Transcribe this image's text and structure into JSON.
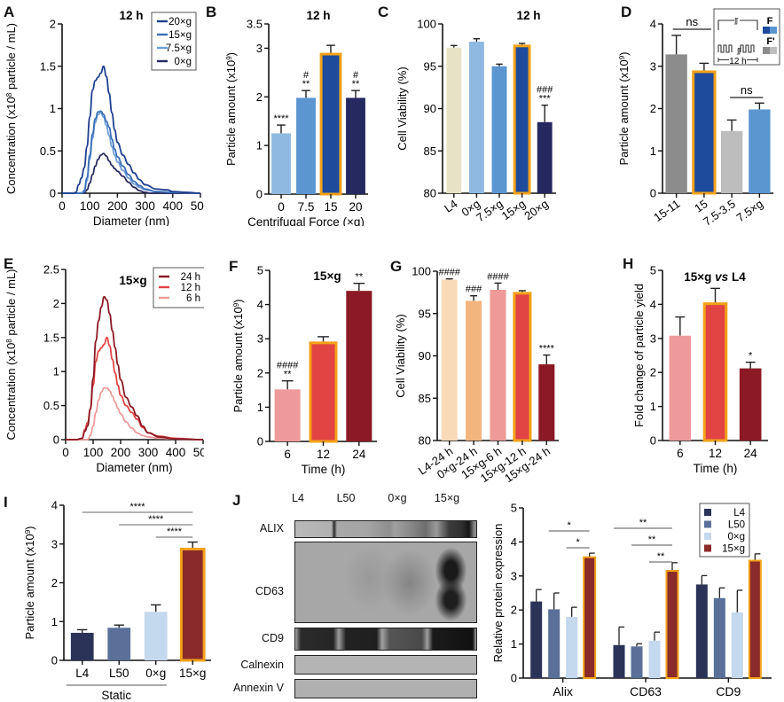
{
  "figure": {
    "panels": [
      "A",
      "B",
      "C",
      "D",
      "E",
      "F",
      "G",
      "H",
      "I",
      "J"
    ]
  },
  "colors": {
    "blue_20": "#1f3f8f",
    "blue_15": "#3d6fb8",
    "blue_75": "#6f9fd6",
    "blue_0": "#a9c8e8",
    "bar_blue_0": "#8fb9e0",
    "bar_blue_75": "#5b96d0",
    "bar_blue_15": "#1e4b9c",
    "bar_blue_20": "#26295f",
    "beige": "#e6e2c6",
    "gray_dark": "#8c8c8c",
    "gray_light": "#bdbdbd",
    "red_24": "#8b1a24",
    "red_12": "#e24444",
    "red_6": "#ef9a9a",
    "peach_light": "#f8dab8",
    "peach": "#f3b57e",
    "pink": "#ee9a98",
    "navy": "#2b3458",
    "slate": "#5a7098",
    "pale_blue": "#c4d8ee",
    "maroon": "#8a2a2a",
    "highlight_outline": "#f2a218"
  },
  "chart_data": [
    {
      "id": "A",
      "type": "line",
      "title": "12 h",
      "xlabel": "Diameter (nm)",
      "ylabel": "Concentration (x10^8 particle / mL)",
      "xlim": [
        0,
        500
      ],
      "ylim": [
        0,
        2
      ],
      "xticks": [
        "0",
        "100",
        "200",
        "300",
        "400",
        "500"
      ],
      "yticks": [
        "0",
        "0.5",
        "1",
        "1.5",
        "2"
      ],
      "legend_position": "top-right",
      "series": [
        {
          "name": "20×g",
          "color_key": "blue_20",
          "x": [
            0,
            40,
            50,
            60,
            70,
            80,
            90,
            100,
            110,
            120,
            130,
            140,
            150,
            160,
            170,
            180,
            190,
            200,
            220,
            240,
            260,
            280,
            300,
            340,
            380,
            400,
            450,
            500
          ],
          "y": [
            0,
            0,
            0.01,
            0.1,
            0.18,
            0.3,
            0.55,
            0.9,
            1.22,
            1.33,
            1.37,
            1.42,
            1.5,
            1.38,
            1.18,
            0.95,
            0.75,
            0.6,
            0.45,
            0.34,
            0.24,
            0.16,
            0.1,
            0.05,
            0.04,
            0.02,
            0.01,
            0
          ]
        },
        {
          "name": "15×g",
          "color_key": "blue_15",
          "x": [
            0,
            70,
            80,
            90,
            100,
            110,
            120,
            130,
            140,
            150,
            160,
            170,
            180,
            190,
            200,
            220,
            240,
            260,
            280,
            300,
            340,
            400,
            500
          ],
          "y": [
            0,
            0,
            0.03,
            0.18,
            0.45,
            0.7,
            0.88,
            0.96,
            0.97,
            0.93,
            0.85,
            0.78,
            0.64,
            0.52,
            0.43,
            0.32,
            0.22,
            0.14,
            0.09,
            0.05,
            0.02,
            0.01,
            0
          ]
        },
        {
          "name": "7.5×g",
          "color_key": "blue_75",
          "x": [
            0,
            70,
            80,
            90,
            100,
            110,
            120,
            130,
            140,
            150,
            160,
            170,
            180,
            190,
            200,
            220,
            240,
            260,
            280,
            300,
            340,
            400,
            500
          ],
          "y": [
            0,
            0,
            0.02,
            0.15,
            0.4,
            0.65,
            0.84,
            0.93,
            0.95,
            0.9,
            0.8,
            0.68,
            0.55,
            0.45,
            0.37,
            0.27,
            0.18,
            0.11,
            0.07,
            0.04,
            0.02,
            0.01,
            0
          ]
        },
        {
          "name": "0×g",
          "color_key": "bar_blue_20",
          "x": [
            0,
            80,
            90,
            100,
            110,
            120,
            130,
            140,
            150,
            160,
            170,
            180,
            190,
            200,
            220,
            240,
            260,
            280,
            300,
            320,
            400,
            500
          ],
          "y": [
            0,
            0,
            0.04,
            0.12,
            0.22,
            0.32,
            0.4,
            0.45,
            0.47,
            0.44,
            0.38,
            0.33,
            0.29,
            0.26,
            0.2,
            0.13,
            0.07,
            0.03,
            0.01,
            0,
            0,
            0
          ]
        }
      ]
    },
    {
      "id": "B",
      "type": "bar",
      "title": "12 h",
      "xlabel": "Centrifugal Force (×g)",
      "ylabel": "Particle amount (x10^9)",
      "ylim": [
        0,
        3.5
      ],
      "yticks": [
        "0",
        "1",
        "2",
        "3",
        "3.5"
      ],
      "categories": [
        "0",
        "7.5",
        "15",
        "20"
      ],
      "values": [
        1.25,
        1.98,
        2.88,
        1.98
      ],
      "errors": [
        0.17,
        0.15,
        0.18,
        0.15
      ],
      "color_keys": [
        "bar_blue_0",
        "bar_blue_75",
        "bar_blue_15",
        "bar_blue_20"
      ],
      "highlighted": [
        false,
        false,
        true,
        false
      ],
      "annotations": [
        "****",
        "#\n**",
        "",
        "#\n**"
      ]
    },
    {
      "id": "C",
      "type": "bar",
      "title": "12 h",
      "xlabel": "",
      "ylabel": "Cell Viability (%)",
      "ylim": [
        80,
        100
      ],
      "yticks": [
        "80",
        "85",
        "90",
        "95",
        "100"
      ],
      "categories": [
        "L4",
        "0×g",
        "7.5×g",
        "15×g",
        "20×g"
      ],
      "values": [
        97.2,
        97.9,
        95.0,
        97.4,
        88.4
      ],
      "errors": [
        0.25,
        0.35,
        0.25,
        0.3,
        2.0
      ],
      "color_keys": [
        "beige",
        "bar_blue_0",
        "bar_blue_75",
        "bar_blue_15",
        "bar_blue_20"
      ],
      "highlighted": [
        false,
        false,
        false,
        true,
        false
      ],
      "annotations": [
        "",
        "",
        "",
        "",
        "###\n***"
      ]
    },
    {
      "id": "D",
      "type": "bar",
      "title": "",
      "xlabel": "",
      "ylabel": "Particle amount (x10^9)",
      "ylim": [
        0,
        4
      ],
      "yticks": [
        "0",
        "1",
        "2",
        "3",
        "4"
      ],
      "categories": [
        "15-11",
        "15",
        "7.5-3.5",
        "7.5×g"
      ],
      "values": [
        3.28,
        2.87,
        1.47,
        1.98
      ],
      "errors": [
        0.45,
        0.2,
        0.26,
        0.15
      ],
      "color_keys": [
        "gray_dark",
        "bar_blue_15",
        "gray_light",
        "bar_blue_75"
      ],
      "highlighted": [
        false,
        true,
        false,
        false
      ],
      "brackets": [
        {
          "from": 0,
          "to": 1,
          "label": "ns"
        },
        {
          "from": 2,
          "to": 3,
          "label": "ns"
        }
      ],
      "inset": {
        "label_f": "F",
        "label_f_prime": "F'",
        "duration": "12 h"
      }
    },
    {
      "id": "E",
      "type": "line",
      "title": "15×g",
      "xlabel": "Diameter (nm)",
      "ylabel": "Concentration (x10^8 particle / mL)",
      "xlim": [
        0,
        500
      ],
      "ylim": [
        0,
        2.5
      ],
      "xticks": [
        "0",
        "100",
        "200",
        "300",
        "400",
        "500"
      ],
      "yticks": [
        "0",
        "0.5",
        "1",
        "1.5",
        "2",
        "2.5"
      ],
      "legend_position": "top-right",
      "series": [
        {
          "name": "24 h",
          "color_key": "red_24",
          "x": [
            0,
            40,
            60,
            70,
            80,
            90,
            100,
            110,
            120,
            130,
            140,
            150,
            160,
            170,
            180,
            190,
            200,
            220,
            240,
            260,
            280,
            300,
            340,
            400,
            500
          ],
          "y": [
            0,
            0,
            0.02,
            0.12,
            0.2,
            0.45,
            0.9,
            1.45,
            1.75,
            1.95,
            2.1,
            2.05,
            1.85,
            1.6,
            1.35,
            1.1,
            0.88,
            0.62,
            0.48,
            0.35,
            0.2,
            0.1,
            0.04,
            0.01,
            0
          ]
        },
        {
          "name": "12 h",
          "color_key": "red_12",
          "x": [
            0,
            40,
            60,
            70,
            80,
            90,
            100,
            110,
            120,
            130,
            140,
            150,
            160,
            170,
            180,
            190,
            200,
            220,
            240,
            260,
            280,
            300,
            340,
            400,
            500
          ],
          "y": [
            0,
            0,
            0.02,
            0.15,
            0.25,
            0.45,
            0.8,
            1.15,
            1.3,
            1.35,
            1.4,
            1.5,
            1.38,
            1.18,
            0.98,
            0.8,
            0.65,
            0.5,
            0.4,
            0.3,
            0.18,
            0.1,
            0.05,
            0.02,
            0
          ]
        },
        {
          "name": "6 h",
          "color_key": "red_6",
          "x": [
            0,
            80,
            90,
            100,
            110,
            120,
            130,
            140,
            150,
            160,
            170,
            180,
            190,
            200,
            220,
            240,
            260,
            280,
            300,
            340,
            400,
            500
          ],
          "y": [
            0,
            0,
            0.06,
            0.2,
            0.4,
            0.58,
            0.7,
            0.76,
            0.76,
            0.72,
            0.64,
            0.55,
            0.46,
            0.38,
            0.26,
            0.17,
            0.1,
            0.06,
            0.04,
            0.02,
            0.01,
            0
          ]
        }
      ]
    },
    {
      "id": "F",
      "type": "bar",
      "title": "15×g",
      "xlabel": "Time (h)",
      "ylabel": "Particle amount (x10^9)",
      "ylim": [
        0,
        5
      ],
      "yticks": [
        "0",
        "1",
        "2",
        "3",
        "4",
        "5"
      ],
      "categories": [
        "6",
        "12",
        "24"
      ],
      "values": [
        1.52,
        2.88,
        4.4
      ],
      "errors": [
        0.25,
        0.18,
        0.22
      ],
      "color_keys": [
        "red_6",
        "red_12",
        "red_24"
      ],
      "highlighted": [
        false,
        true,
        false
      ],
      "annotations": [
        "####\n**",
        "",
        "**"
      ]
    },
    {
      "id": "G",
      "type": "bar",
      "title": "",
      "xlabel": "",
      "ylabel": "Cell Viability (%)",
      "ylim": [
        80,
        100
      ],
      "yticks": [
        "80",
        "85",
        "90",
        "95",
        "100"
      ],
      "categories": [
        "L4-24 h",
        "0×g-24 h",
        "15×g-6 h",
        "15×g-12 h",
        "15×g-24 h"
      ],
      "values": [
        99.0,
        96.5,
        97.8,
        97.4,
        89.0
      ],
      "errors": [
        0.1,
        0.6,
        0.8,
        0.3,
        1.1
      ],
      "color_keys": [
        "peach_light",
        "peach",
        "pink",
        "red_12",
        "red_24"
      ],
      "highlighted": [
        false,
        false,
        false,
        true,
        false
      ],
      "annotations": [
        "####",
        "###",
        "####",
        "",
        "****"
      ]
    },
    {
      "id": "H",
      "type": "bar",
      "title": "15×g vs L4",
      "xlabel": "Time (h)",
      "ylabel": "Fold change of particle yield",
      "ylim": [
        0,
        5
      ],
      "yticks": [
        "0",
        "1",
        "2",
        "3",
        "4",
        "5"
      ],
      "categories": [
        "6",
        "12",
        "24"
      ],
      "values": [
        3.08,
        4.02,
        2.12
      ],
      "errors": [
        0.55,
        0.45,
        0.18
      ],
      "color_keys": [
        "red_6",
        "red_12",
        "red_24"
      ],
      "highlighted": [
        false,
        true,
        false
      ],
      "annotations": [
        "",
        "",
        "*"
      ]
    },
    {
      "id": "I",
      "type": "bar",
      "title": "",
      "xlabel": "Static",
      "ylabel": "Particle amount (x10^9)",
      "ylim": [
        0,
        4
      ],
      "yticks": [
        "0",
        "1",
        "2",
        "3",
        "4"
      ],
      "categories": [
        "L4",
        "L50",
        "0×g",
        "15×g"
      ],
      "values": [
        0.71,
        0.84,
        1.25,
        2.87
      ],
      "errors": [
        0.08,
        0.07,
        0.18,
        0.18
      ],
      "color_keys": [
        "navy",
        "slate",
        "pale_blue",
        "maroon"
      ],
      "highlighted": [
        false,
        false,
        false,
        true
      ],
      "brackets": [
        {
          "from": 0,
          "to": 3,
          "label": "****"
        },
        {
          "from": 1,
          "to": 3,
          "label": "****"
        },
        {
          "from": 2,
          "to": 3,
          "label": "****"
        }
      ],
      "group_label": {
        "from": 0,
        "to": 2,
        "label": "Static"
      }
    },
    {
      "id": "J-bar",
      "type": "bar",
      "title": "",
      "xlabel": "",
      "ylabel": "Relative protein expression",
      "ylim": [
        0,
        5
      ],
      "yticks": [
        "0",
        "1",
        "2",
        "3",
        "4",
        "5"
      ],
      "categories": [
        "Alix",
        "CD63",
        "CD9"
      ],
      "legend_position": "top-right",
      "series": [
        {
          "name": "L4",
          "color_key": "navy",
          "values": [
            2.25,
            0.97,
            2.75
          ],
          "errors": [
            0.35,
            0.53,
            0.26
          ]
        },
        {
          "name": "L50",
          "color_key": "slate",
          "values": [
            2.02,
            0.93,
            2.35
          ],
          "errors": [
            0.48,
            0.08,
            0.3
          ]
        },
        {
          "name": "0×g",
          "color_key": "pale_blue",
          "values": [
            1.8,
            1.1,
            1.93
          ],
          "errors": [
            0.28,
            0.25,
            0.65
          ]
        },
        {
          "name": "15×g",
          "color_key": "maroon",
          "values": [
            3.55,
            3.15,
            3.45
          ],
          "errors": [
            0.12,
            0.24,
            0.2
          ],
          "highlighted": true
        }
      ],
      "brackets": [
        {
          "category": 0,
          "from": 1,
          "to": 3,
          "label": "*"
        },
        {
          "category": 0,
          "from": 2,
          "to": 3,
          "label": "*"
        },
        {
          "category": 1,
          "from": 0,
          "to": 3,
          "label": "**"
        },
        {
          "category": 1,
          "from": 1,
          "to": 3,
          "label": "**"
        },
        {
          "category": 1,
          "from": 2,
          "to": 3,
          "label": "**"
        }
      ]
    }
  ],
  "blot": {
    "lanes": [
      "L4",
      "L50",
      "0×g",
      "15×g"
    ],
    "rows": [
      "ALIX",
      "CD63",
      "CD9",
      "Calnexin",
      "Annexin V"
    ]
  }
}
